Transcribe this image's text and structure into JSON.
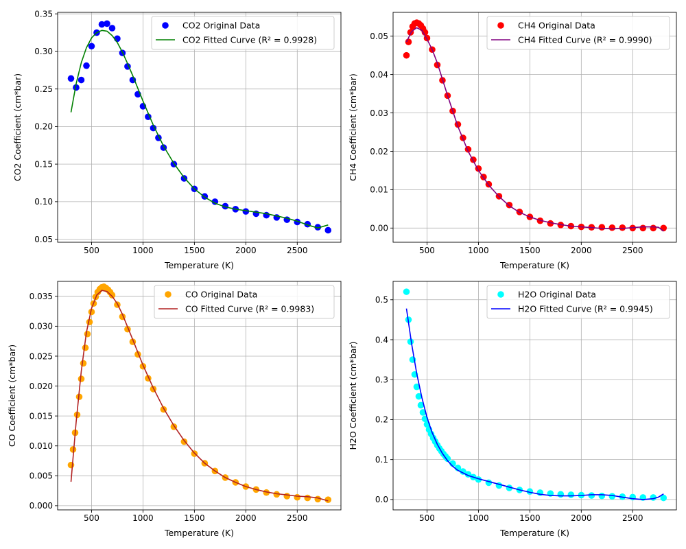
{
  "chart_data": [
    {
      "type": "scatter",
      "xlabel": "Temperature (K)",
      "ylabel": "CO2 Coefficient (cm*bar)",
      "xlim": [
        170,
        2925
      ],
      "ylim": [
        0.046,
        0.352
      ],
      "xticks": [
        500,
        1000,
        1500,
        2000,
        2500
      ],
      "yticks": [
        0.05,
        0.1,
        0.15,
        0.2,
        0.25,
        0.3,
        0.35
      ],
      "ytick_decimals": 2,
      "grid": true,
      "legend_position": "top-right",
      "series": [
        {
          "name": "CO2 Original Data",
          "kind": "scatter",
          "color": "#0000ff",
          "x": [
            300,
            350,
            400,
            450,
            500,
            550,
            600,
            650,
            700,
            750,
            800,
            850,
            900,
            950,
            1000,
            1050,
            1100,
            1150,
            1200,
            1300,
            1400,
            1500,
            1600,
            1700,
            1800,
            1900,
            2000,
            2100,
            2200,
            2300,
            2400,
            2500,
            2600,
            2700,
            2800
          ],
          "y": [
            0.264,
            0.252,
            0.262,
            0.281,
            0.307,
            0.325,
            0.336,
            0.337,
            0.331,
            0.317,
            0.298,
            0.28,
            0.262,
            0.243,
            0.227,
            0.213,
            0.198,
            0.185,
            0.172,
            0.15,
            0.131,
            0.117,
            0.107,
            0.1,
            0.094,
            0.09,
            0.087,
            0.084,
            0.082,
            0.079,
            0.076,
            0.073,
            0.07,
            0.066,
            0.062
          ]
        },
        {
          "name": "CO2 Fitted Curve (R² = 0.9928)",
          "kind": "line",
          "color": "#008000",
          "x": [
            300,
            350,
            400,
            450,
            500,
            550,
            600,
            650,
            700,
            750,
            800,
            850,
            900,
            1000,
            1100,
            1200,
            1300,
            1400,
            1500,
            1600,
            1700,
            1800,
            1900,
            2000,
            2100,
            2200,
            2300,
            2400,
            2500,
            2600,
            2700,
            2800
          ],
          "y": [
            0.219,
            0.257,
            0.285,
            0.305,
            0.318,
            0.325,
            0.328,
            0.327,
            0.321,
            0.312,
            0.299,
            0.284,
            0.268,
            0.234,
            0.202,
            0.174,
            0.151,
            0.132,
            0.117,
            0.106,
            0.098,
            0.093,
            0.09,
            0.088,
            0.086,
            0.084,
            0.081,
            0.078,
            0.074,
            0.069,
            0.065,
            0.069
          ]
        }
      ]
    },
    {
      "type": "scatter",
      "xlabel": "Temperature (K)",
      "ylabel": "CH4 Coefficient (cm*bar)",
      "xlim": [
        170,
        2925
      ],
      "ylim": [
        -0.0037,
        0.0562
      ],
      "xticks": [
        500,
        1000,
        1500,
        2000,
        2500
      ],
      "yticks": [
        0.0,
        0.01,
        0.02,
        0.03,
        0.04,
        0.05
      ],
      "ytick_decimals": 2,
      "grid": true,
      "legend_position": "top-right",
      "series": [
        {
          "name": "CH4 Original Data",
          "kind": "scatter",
          "color": "#ff0000",
          "x": [
            300,
            320,
            340,
            360,
            380,
            400,
            420,
            440,
            460,
            480,
            500,
            550,
            600,
            650,
            700,
            750,
            800,
            850,
            900,
            950,
            1000,
            1050,
            1100,
            1200,
            1300,
            1400,
            1500,
            1600,
            1700,
            1800,
            1900,
            2000,
            2100,
            2200,
            2300,
            2400,
            2500,
            2600,
            2700,
            2800
          ],
          "y": [
            0.045,
            0.0485,
            0.051,
            0.0525,
            0.0533,
            0.0535,
            0.0533,
            0.0528,
            0.052,
            0.051,
            0.0495,
            0.0465,
            0.0425,
            0.0385,
            0.0345,
            0.0305,
            0.027,
            0.0235,
            0.0205,
            0.0178,
            0.0155,
            0.0133,
            0.0114,
            0.0083,
            0.006,
            0.0042,
            0.0029,
            0.0019,
            0.0012,
            0.0008,
            0.0005,
            0.0003,
            0.0002,
            0.0002,
            0.0001,
            0.0001,
            0.0,
            0.0,
            0.0,
            0.0
          ]
        },
        {
          "name": "CH4 Fitted Curve (R² = 0.9990)",
          "kind": "line",
          "color": "#800080",
          "x": [
            300,
            350,
            400,
            450,
            500,
            550,
            600,
            700,
            800,
            900,
            1000,
            1100,
            1200,
            1300,
            1400,
            1500,
            1600,
            1700,
            1800,
            1900,
            2000,
            2100,
            2200,
            2300,
            2400,
            2500,
            2600,
            2700,
            2750,
            2800
          ],
          "y": [
            0.0485,
            0.0512,
            0.0522,
            0.0515,
            0.0492,
            0.0465,
            0.043,
            0.0345,
            0.0265,
            0.02,
            0.015,
            0.0112,
            0.0082,
            0.0058,
            0.0041,
            0.0029,
            0.002,
            0.0014,
            0.0009,
            0.0005,
            0.0003,
            0.0001,
            -0.0001,
            -0.0002,
            -0.0001,
            0.0001,
            0.0003,
            0.0003,
            0.0002,
            -0.0008
          ]
        }
      ]
    },
    {
      "type": "scatter",
      "xlabel": "Temperature (K)",
      "ylabel": "CO Coefficient (cm*bar)",
      "xlim": [
        170,
        2925
      ],
      "ylim": [
        -0.0007,
        0.0375
      ],
      "xticks": [
        500,
        1000,
        1500,
        2000,
        2500
      ],
      "yticks": [
        0.0,
        0.005,
        0.01,
        0.015,
        0.02,
        0.025,
        0.03,
        0.035
      ],
      "ytick_decimals": 3,
      "grid": true,
      "legend_position": "top-right",
      "series": [
        {
          "name": "CO Original Data",
          "kind": "scatter",
          "color": "#ffa500",
          "x": [
            300,
            320,
            340,
            360,
            380,
            400,
            420,
            440,
            460,
            480,
            500,
            520,
            540,
            560,
            580,
            600,
            620,
            640,
            660,
            680,
            700,
            750,
            800,
            850,
            900,
            950,
            1000,
            1050,
            1100,
            1200,
            1300,
            1400,
            1500,
            1600,
            1700,
            1800,
            1900,
            2000,
            2100,
            2200,
            2300,
            2400,
            2500,
            2600,
            2700,
            2800
          ],
          "y": [
            0.0068,
            0.0094,
            0.0122,
            0.0152,
            0.0182,
            0.0212,
            0.0238,
            0.0264,
            0.0287,
            0.0307,
            0.0324,
            0.0338,
            0.0349,
            0.0357,
            0.0362,
            0.0365,
            0.0366,
            0.0364,
            0.0361,
            0.0357,
            0.0352,
            0.0336,
            0.0316,
            0.0295,
            0.0274,
            0.0253,
            0.0233,
            0.0213,
            0.0195,
            0.0161,
            0.0132,
            0.0107,
            0.0087,
            0.0071,
            0.0058,
            0.0047,
            0.0039,
            0.0032,
            0.0027,
            0.0022,
            0.0019,
            0.0016,
            0.0014,
            0.0013,
            0.0011,
            0.001
          ]
        },
        {
          "name": "CO Fitted Curve (R² = 0.9983)",
          "kind": "line",
          "color": "#b22222",
          "x": [
            300,
            350,
            400,
            450,
            500,
            550,
            600,
            650,
            700,
            750,
            800,
            900,
            1000,
            1100,
            1200,
            1300,
            1400,
            1500,
            1600,
            1700,
            1800,
            1900,
            2000,
            2100,
            2200,
            2300,
            2400,
            2500,
            2600,
            2700,
            2800
          ],
          "y": [
            0.004,
            0.014,
            0.0225,
            0.029,
            0.033,
            0.0352,
            0.036,
            0.0358,
            0.035,
            0.0338,
            0.032,
            0.0278,
            0.0235,
            0.0197,
            0.0163,
            0.0134,
            0.0109,
            0.0088,
            0.0071,
            0.0058,
            0.0047,
            0.0039,
            0.0032,
            0.0027,
            0.0023,
            0.002,
            0.0018,
            0.0016,
            0.0015,
            0.0013,
            0.0008
          ]
        }
      ]
    },
    {
      "type": "scatter",
      "xlabel": "Temperature (K)",
      "ylabel": "H2O Coefficient (cm*bar)",
      "xlim": [
        170,
        2925
      ],
      "ylim": [
        -0.026,
        0.546
      ],
      "xticks": [
        500,
        1000,
        1500,
        2000,
        2500
      ],
      "yticks": [
        0.0,
        0.1,
        0.2,
        0.3,
        0.4,
        0.5
      ],
      "ytick_decimals": 1,
      "grid": true,
      "legend_position": "top-right",
      "series": [
        {
          "name": "H2O Original Data",
          "kind": "scatter",
          "color": "#00ffff",
          "x": [
            300,
            320,
            340,
            360,
            380,
            400,
            420,
            440,
            460,
            480,
            500,
            520,
            540,
            560,
            580,
            600,
            620,
            640,
            660,
            680,
            700,
            750,
            800,
            850,
            900,
            950,
            1000,
            1100,
            1200,
            1300,
            1400,
            1500,
            1600,
            1700,
            1800,
            1900,
            2000,
            2100,
            2200,
            2300,
            2400,
            2500,
            2600,
            2700,
            2800
          ],
          "y": [
            0.52,
            0.45,
            0.395,
            0.35,
            0.313,
            0.282,
            0.258,
            0.236,
            0.218,
            0.202,
            0.188,
            0.175,
            0.164,
            0.154,
            0.145,
            0.136,
            0.128,
            0.121,
            0.114,
            0.108,
            0.102,
            0.09,
            0.079,
            0.07,
            0.063,
            0.056,
            0.05,
            0.042,
            0.035,
            0.029,
            0.024,
            0.02,
            0.017,
            0.015,
            0.013,
            0.012,
            0.011,
            0.01,
            0.009,
            0.008,
            0.007,
            0.006,
            0.005,
            0.005,
            0.004
          ]
        },
        {
          "name": "H2O Fitted Curve (R² = 0.9945)",
          "kind": "line",
          "color": "#0000ff",
          "x": [
            300,
            350,
            400,
            450,
            500,
            550,
            600,
            650,
            700,
            750,
            800,
            900,
            1000,
            1100,
            1200,
            1300,
            1400,
            1500,
            1600,
            1700,
            1800,
            1900,
            2000,
            2100,
            2200,
            2300,
            2400,
            2500,
            2600,
            2700,
            2750,
            2800
          ],
          "y": [
            0.478,
            0.39,
            0.315,
            0.255,
            0.205,
            0.167,
            0.138,
            0.115,
            0.097,
            0.083,
            0.073,
            0.06,
            0.052,
            0.045,
            0.038,
            0.031,
            0.024,
            0.018,
            0.013,
            0.01,
            0.009,
            0.009,
            0.01,
            0.012,
            0.012,
            0.01,
            0.006,
            0.002,
            0.0,
            0.002,
            0.006,
            0.014
          ]
        }
      ]
    }
  ]
}
